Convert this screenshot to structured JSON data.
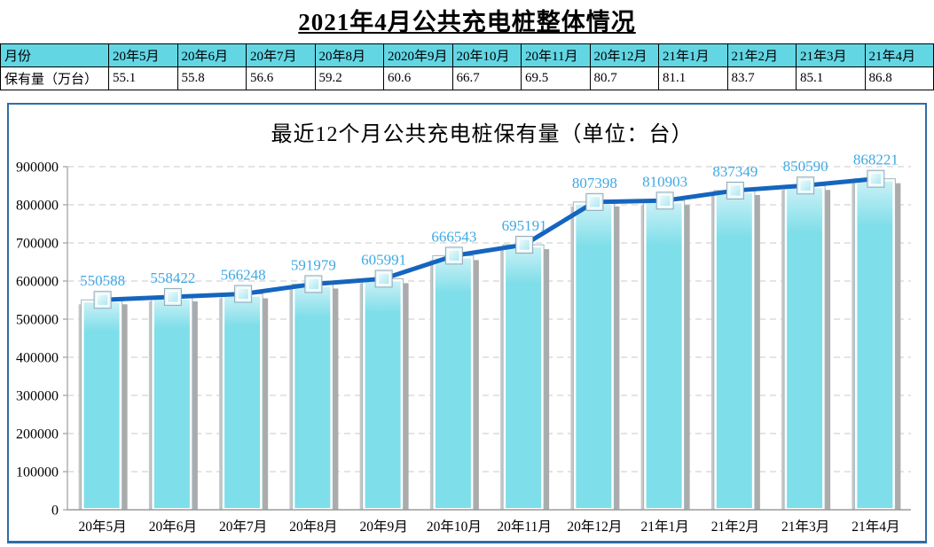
{
  "page_title": "2021年4月公共充电桩整体情况",
  "table": {
    "row_header_label": "月份",
    "row_value_label": "保有量（万台）",
    "months": [
      "20年5月",
      "20年6月",
      "20年7月",
      "20年8月",
      "2020年9月",
      "20年10月",
      "20年11月",
      "20年12月",
      "21年1月",
      "21年2月",
      "21年3月",
      "21年4月"
    ],
    "values": [
      "55.1",
      "55.8",
      "56.6",
      "59.2",
      "60.6",
      "66.7",
      "69.5",
      "80.7",
      "81.1",
      "83.7",
      "85.1",
      "86.8"
    ]
  },
  "chart_data": {
    "type": "bar",
    "subtype": "bar-with-line-markers",
    "title": "最近12个月公共充电桩保有量（单位：台）",
    "categories": [
      "20年5月",
      "20年6月",
      "20年7月",
      "20年8月",
      "20年9月",
      "20年10月",
      "20年11月",
      "20年12月",
      "21年1月",
      "21年2月",
      "21年3月",
      "21年4月"
    ],
    "values": [
      550588,
      558422,
      566248,
      591979,
      605991,
      666543,
      695191,
      807398,
      810903,
      837349,
      850590,
      868221
    ],
    "ylim": [
      0,
      900000
    ],
    "ytick_step": 100000,
    "grid": true,
    "legend": "none",
    "colors": {
      "bar_fill": "#7EDEE9",
      "bar_fill_top": "#C9F0F6",
      "bar_inner_border": "#FFFFFF",
      "bar_outline": "#9FB6BC",
      "bar_shadow": "#ABABAB",
      "line": "#1565BE",
      "marker_fill": "#A8E7F1",
      "marker_edge": "#8FA6B6",
      "data_label": "#3FA9E3",
      "gridline": "#D4D4D4",
      "axis": "#AFAFAF",
      "panel_border": "#2E6DA8",
      "table_header_bg": "#63D6E4"
    }
  }
}
